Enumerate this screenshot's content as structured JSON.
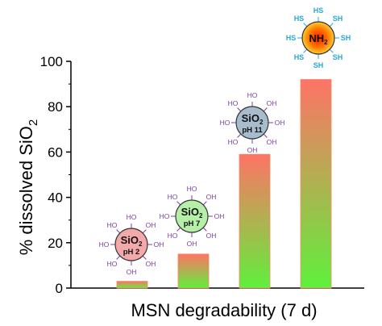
{
  "chart_data": {
    "type": "bar",
    "categories": [
      "SiO2 pH 2",
      "SiO2 pH 7",
      "SiO2 pH 11",
      "NH2"
    ],
    "values": [
      3,
      15,
      59,
      92
    ],
    "xlabel": "MSN degradability (7 d)",
    "ylabel_main": "% dissolved SiO",
    "ylabel_sub": "2",
    "ylim": [
      0,
      100
    ],
    "yticks": [
      0,
      20,
      40,
      60,
      80,
      100
    ],
    "grid": false,
    "bar_gradient": {
      "top": "#ff7366",
      "bottom": "#5ff03c"
    },
    "particles": [
      {
        "main": "SiO",
        "main_sub": "2",
        "ph": "pH 2",
        "color": "#f3a9a9",
        "group": "OH",
        "group_label": "HO",
        "group_label_alt": "OH"
      },
      {
        "main": "SiO",
        "main_sub": "2",
        "ph": "pH 7",
        "color": "#b6f0a8",
        "group": "OH",
        "group_label": "HO",
        "group_label_alt": "OH"
      },
      {
        "main": "SiO",
        "main_sub": "2",
        "ph": "pH 11",
        "color": "#a7bccd",
        "group": "OH",
        "group_label": "HO",
        "group_label_alt": "OH"
      },
      {
        "main": "NH",
        "main_sub": "2",
        "ph": "",
        "color": "#ff6a00",
        "group": "SH",
        "group_label": "HS",
        "group_label_alt": "SH"
      }
    ]
  }
}
